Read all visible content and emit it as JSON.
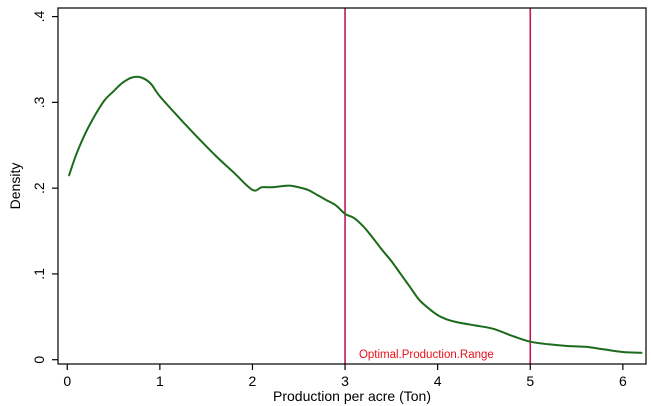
{
  "chart_data": {
    "type": "line",
    "title": "",
    "xlabel": "Production per acre (Ton)",
    "ylabel": "Density",
    "xlim": [
      -0.1,
      6.25
    ],
    "ylim": [
      -0.005,
      0.41
    ],
    "x_ticks": [
      0,
      1,
      2,
      3,
      4,
      5,
      6
    ],
    "x_tick_labels": [
      "0",
      "1",
      "2",
      "3",
      "4",
      "5",
      "6"
    ],
    "y_ticks": [
      0,
      0.1,
      0.2,
      0.3,
      0.4
    ],
    "y_tick_labels": [
      "0",
      ".1",
      ".2",
      ".3",
      ".4"
    ],
    "grid": false,
    "series": [
      {
        "color": "#1a6b1a",
        "x": [
          0.02,
          0.1,
          0.2,
          0.3,
          0.4,
          0.5,
          0.6,
          0.7,
          0.8,
          0.9,
          1.0,
          1.2,
          1.4,
          1.6,
          1.8,
          2.0,
          2.1,
          2.2,
          2.3,
          2.4,
          2.5,
          2.6,
          2.7,
          2.8,
          2.9,
          3.0,
          3.1,
          3.2,
          3.3,
          3.4,
          3.5,
          3.6,
          3.7,
          3.8,
          3.9,
          4.0,
          4.1,
          4.2,
          4.4,
          4.6,
          4.8,
          5.0,
          5.2,
          5.4,
          5.6,
          5.8,
          6.0,
          6.2
        ],
        "y": [
          0.215,
          0.24,
          0.265,
          0.285,
          0.302,
          0.313,
          0.323,
          0.329,
          0.329,
          0.322,
          0.307,
          0.283,
          0.26,
          0.238,
          0.218,
          0.198,
          0.201,
          0.201,
          0.202,
          0.203,
          0.201,
          0.198,
          0.192,
          0.186,
          0.18,
          0.17,
          0.165,
          0.155,
          0.142,
          0.128,
          0.115,
          0.1,
          0.085,
          0.07,
          0.06,
          0.052,
          0.047,
          0.044,
          0.04,
          0.036,
          0.028,
          0.021,
          0.018,
          0.016,
          0.015,
          0.012,
          0.009,
          0.008
        ]
      }
    ],
    "reference_lines": [
      {
        "axis": "x",
        "value": 3,
        "color": "#c0185a"
      },
      {
        "axis": "x",
        "value": 5,
        "color": "#c0185a"
      }
    ],
    "annotation": {
      "text": "Optimal.Production.Range",
      "x": 3.15,
      "y": 0.002,
      "color": "#e8101a"
    }
  }
}
